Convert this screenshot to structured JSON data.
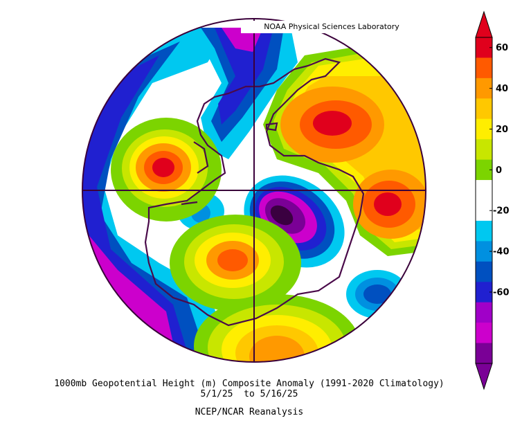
{
  "credit": "NOAA Physical Sciences Laboratory",
  "title": {
    "line1": "1000mb Geopotential Height (m) Composite Anomaly (1991-2020 Climatology)",
    "line2": "5/1/25  to 5/16/25",
    "line3": "NCEP/NCAR Reanalysis"
  },
  "colorbar": {
    "labels": [
      "60",
      "40",
      "20",
      "0",
      "-20",
      "-40",
      "-60"
    ],
    "bins": [
      {
        "color": "#e0001c"
      },
      {
        "color": "#ff5a00"
      },
      {
        "color": "#ff9900"
      },
      {
        "color": "#ffc800"
      },
      {
        "color": "#ffee00"
      },
      {
        "color": "#c8e600"
      },
      {
        "color": "#7cd400"
      },
      {
        "color": "#ffffff"
      },
      {
        "color": "#ffffff"
      },
      {
        "color": "#00c8f0"
      },
      {
        "color": "#0090e0"
      },
      {
        "color": "#0050c0"
      },
      {
        "color": "#2020d0"
      },
      {
        "color": "#a000c8"
      },
      {
        "color": "#cc00cc"
      },
      {
        "color": "#7a0096"
      }
    ]
  }
}
